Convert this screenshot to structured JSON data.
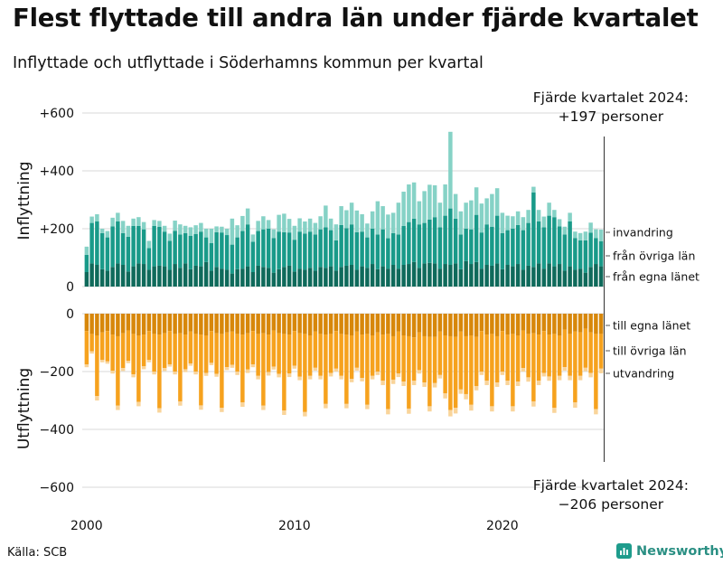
{
  "title": "Flest flyttade till andra län under fjärde kvartalet",
  "subtitle": "Inflyttade och utflyttade i Söderhamns kommun per kvartal",
  "annotations": {
    "top_line1": "Fjärde kvartalet 2024:",
    "top_line2": "+197 personer",
    "bottom_line1": "Fjärde kvartalet 2024:",
    "bottom_line2": "−206 personer"
  },
  "source": "Källa: SCB",
  "brand": "Newsworthy",
  "icons": {
    "brand": "newsworthy-logo-icon"
  },
  "colors": {
    "in_own": "#0f6a5b",
    "in_other": "#199a89",
    "in_immig": "#86d2c6",
    "out_own": "#d7870a",
    "out_other": "#f6a21e",
    "out_emig": "#f9d49a",
    "grid": "#d8d8d8",
    "brand": "#2a8f83"
  },
  "chart_data": {
    "type": "bar",
    "stacked": true,
    "x_start": "2000-Q1",
    "x_end": "2024-Q4",
    "x_ticks": [
      "2000",
      "2010",
      "2020"
    ],
    "panels": [
      {
        "ylabel": "Inflyttning",
        "ylim": [
          0,
          650
        ],
        "yticks": [
          0,
          200,
          400,
          600
        ],
        "ytick_labels": [
          "0",
          "+200",
          "+400",
          "+600"
        ],
        "legend": [
          "invandring",
          "från övriga län",
          "från egna länet"
        ],
        "series": [
          {
            "name": "från egna länet",
            "values": [
              50,
              80,
              75,
              60,
              55,
              68,
              80,
              75,
              52,
              70,
              80,
              78,
              58,
              70,
              72,
              70,
              58,
              78,
              65,
              80,
              60,
              72,
              70,
              85,
              55,
              68,
              62,
              58,
              45,
              60,
              62,
              70,
              50,
              72,
              68,
              65,
              48,
              60,
              68,
              72,
              52,
              62,
              58,
              65,
              55,
              68,
              65,
              70,
              55,
              68,
              72,
              75,
              58,
              70,
              65,
              78,
              60,
              70,
              62,
              75,
              62,
              75,
              78,
              85,
              65,
              80,
              82,
              80,
              62,
              78,
              75,
              80,
              60,
              88,
              78,
              85,
              62,
              75,
              72,
              80,
              60,
              75,
              70,
              78,
              58,
              72,
              68,
              80,
              62,
              80,
              70,
              78,
              55,
              70,
              58,
              62,
              48,
              68,
              78,
              70
            ]
          },
          {
            "name": "från övriga län",
            "values": [
              60,
              140,
              150,
              125,
              115,
              140,
              145,
              110,
              120,
              140,
              130,
              120,
              75,
              140,
              135,
              120,
              100,
              115,
              115,
              105,
              115,
              110,
              120,
              85,
              95,
              120,
              125,
              120,
              100,
              110,
              130,
              145,
              105,
              120,
              130,
              135,
              120,
              130,
              120,
              115,
              110,
              128,
              125,
              125,
              125,
              130,
              140,
              125,
              105,
              145,
              130,
              140,
              130,
              120,
              105,
              122,
              120,
              128,
              105,
              110,
              118,
              135,
              145,
              150,
              150,
              140,
              150,
              160,
              143,
              167,
              195,
              155,
              120,
              112,
              120,
              163,
              125,
              140,
              135,
              165,
              125,
              120,
              130,
              135,
              137,
              148,
              257,
              145,
              143,
              165,
              170,
              130,
              125,
              155,
              110,
              98,
              112,
              118,
              90,
              87
            ]
          },
          {
            "name": "invandring",
            "values": [
              28,
              22,
              25,
              15,
              22,
              30,
              30,
              42,
              38,
              25,
              30,
              25,
              25,
              20,
              20,
              20,
              25,
              35,
              35,
              25,
              30,
              30,
              30,
              30,
              50,
              20,
              20,
              22,
              90,
              42,
              52,
              55,
              25,
              35,
              45,
              30,
              30,
              58,
              64,
              47,
              48,
              46,
              42,
              45,
              40,
              45,
              75,
              40,
              55,
              65,
              62,
              75,
              75,
              60,
              48,
              60,
              115,
              80,
              82,
              70,
              110,
              118,
              130,
              125,
              80,
              110,
              120,
              110,
              85,
              108,
              265,
              85,
              80,
              90,
              100,
              95,
              100,
              90,
              113,
              95,
              70,
              50,
              43,
              47,
              45,
              45,
              20,
              40,
              37,
              45,
              25,
              25,
              27,
              30,
              22,
              25,
              30,
              35,
              30,
              40
            ]
          }
        ]
      },
      {
        "ylabel": "Utflyttning",
        "ylim": [
          -650,
          0
        ],
        "yticks": [
          0,
          -200,
          -400,
          -600
        ],
        "ytick_labels": [
          "0",
          "−200",
          "−400",
          "−600"
        ],
        "legend": [
          "till egna länet",
          "till övriga län",
          "utvandring"
        ],
        "series": [
          {
            "name": "till egna länet",
            "values": [
              -60,
              -70,
              -75,
              -65,
              -60,
              -72,
              -78,
              -68,
              -58,
              -70,
              -75,
              -72,
              -60,
              -70,
              -72,
              -68,
              -60,
              -70,
              -68,
              -72,
              -62,
              -70,
              -72,
              -75,
              -60,
              -68,
              -70,
              -65,
              -62,
              -70,
              -72,
              -68,
              -60,
              -70,
              -68,
              -72,
              -58,
              -68,
              -70,
              -72,
              -60,
              -68,
              -70,
              -75,
              -62,
              -70,
              -72,
              -70,
              -60,
              -70,
              -72,
              -75,
              -62,
              -72,
              -70,
              -75,
              -65,
              -72,
              -70,
              -78,
              -62,
              -75,
              -78,
              -82,
              -65,
              -78,
              -80,
              -80,
              -62,
              -75,
              -78,
              -80,
              -62,
              -78,
              -75,
              -80,
              -60,
              -72,
              -70,
              -78,
              -60,
              -72,
              -70,
              -75,
              -58,
              -70,
              -68,
              -72,
              -60,
              -72,
              -70,
              -75,
              -55,
              -70,
              -62,
              -65,
              -52,
              -65,
              -70,
              -70
            ]
          },
          {
            "name": "till övriga län",
            "values": [
              -115,
              -60,
              -210,
              -95,
              -105,
              -125,
              -240,
              -120,
              -105,
              -140,
              -230,
              -110,
              -100,
              -130,
              -255,
              -120,
              -115,
              -130,
              -235,
              -120,
              -110,
              -130,
              -245,
              -130,
              -110,
              -140,
              -255,
              -120,
              -115,
              -130,
              -235,
              -125,
              -115,
              -145,
              -250,
              -130,
              -125,
              -140,
              -265,
              -135,
              -120,
              -150,
              -270,
              -140,
              -125,
              -145,
              -240,
              -135,
              -130,
              -145,
              -240,
              -150,
              -125,
              -150,
              -245,
              -140,
              -135,
              -160,
              -260,
              -150,
              -145,
              -160,
              -250,
              -150,
              -130,
              -160,
              -240,
              -160,
              -150,
              -200,
              -255,
              -245,
              -200,
              -200,
              -240,
              -170,
              -140,
              -160,
              -250,
              -160,
              -140,
              -160,
              -250,
              -160,
              -130,
              -150,
              -235,
              -160,
              -145,
              -145,
              -255,
              -140,
              -130,
              -145,
              -245,
              -150,
              -135,
              -140,
              -260,
              -120
            ]
          },
          {
            "name": "utvandring",
            "values": [
              -10,
              -8,
              -15,
              -8,
              -8,
              -10,
              -15,
              -10,
              -8,
              -10,
              -15,
              -10,
              -8,
              -10,
              -15,
              -10,
              -8,
              -10,
              -15,
              -10,
              -8,
              -10,
              -15,
              -10,
              -8,
              -10,
              -15,
              -10,
              -10,
              -12,
              -15,
              -12,
              -10,
              -12,
              -15,
              -12,
              -10,
              -12,
              -15,
              -12,
              -10,
              -12,
              -15,
              -12,
              -10,
              -12,
              -15,
              -12,
              -10,
              -12,
              -15,
              -12,
              -10,
              -12,
              -15,
              -12,
              -12,
              -15,
              -18,
              -15,
              -12,
              -15,
              -18,
              -15,
              -12,
              -15,
              -18,
              -15,
              -12,
              -18,
              -22,
              -20,
              -15,
              -18,
              -20,
              -15,
              -12,
              -15,
              -18,
              -15,
              -12,
              -15,
              -18,
              -15,
              -12,
              -15,
              -18,
              -15,
              -12,
              -15,
              -18,
              -15,
              -12,
              -15,
              -18,
              -15,
              -12,
              -15,
              -18,
              -16
            ]
          }
        ]
      }
    ]
  }
}
